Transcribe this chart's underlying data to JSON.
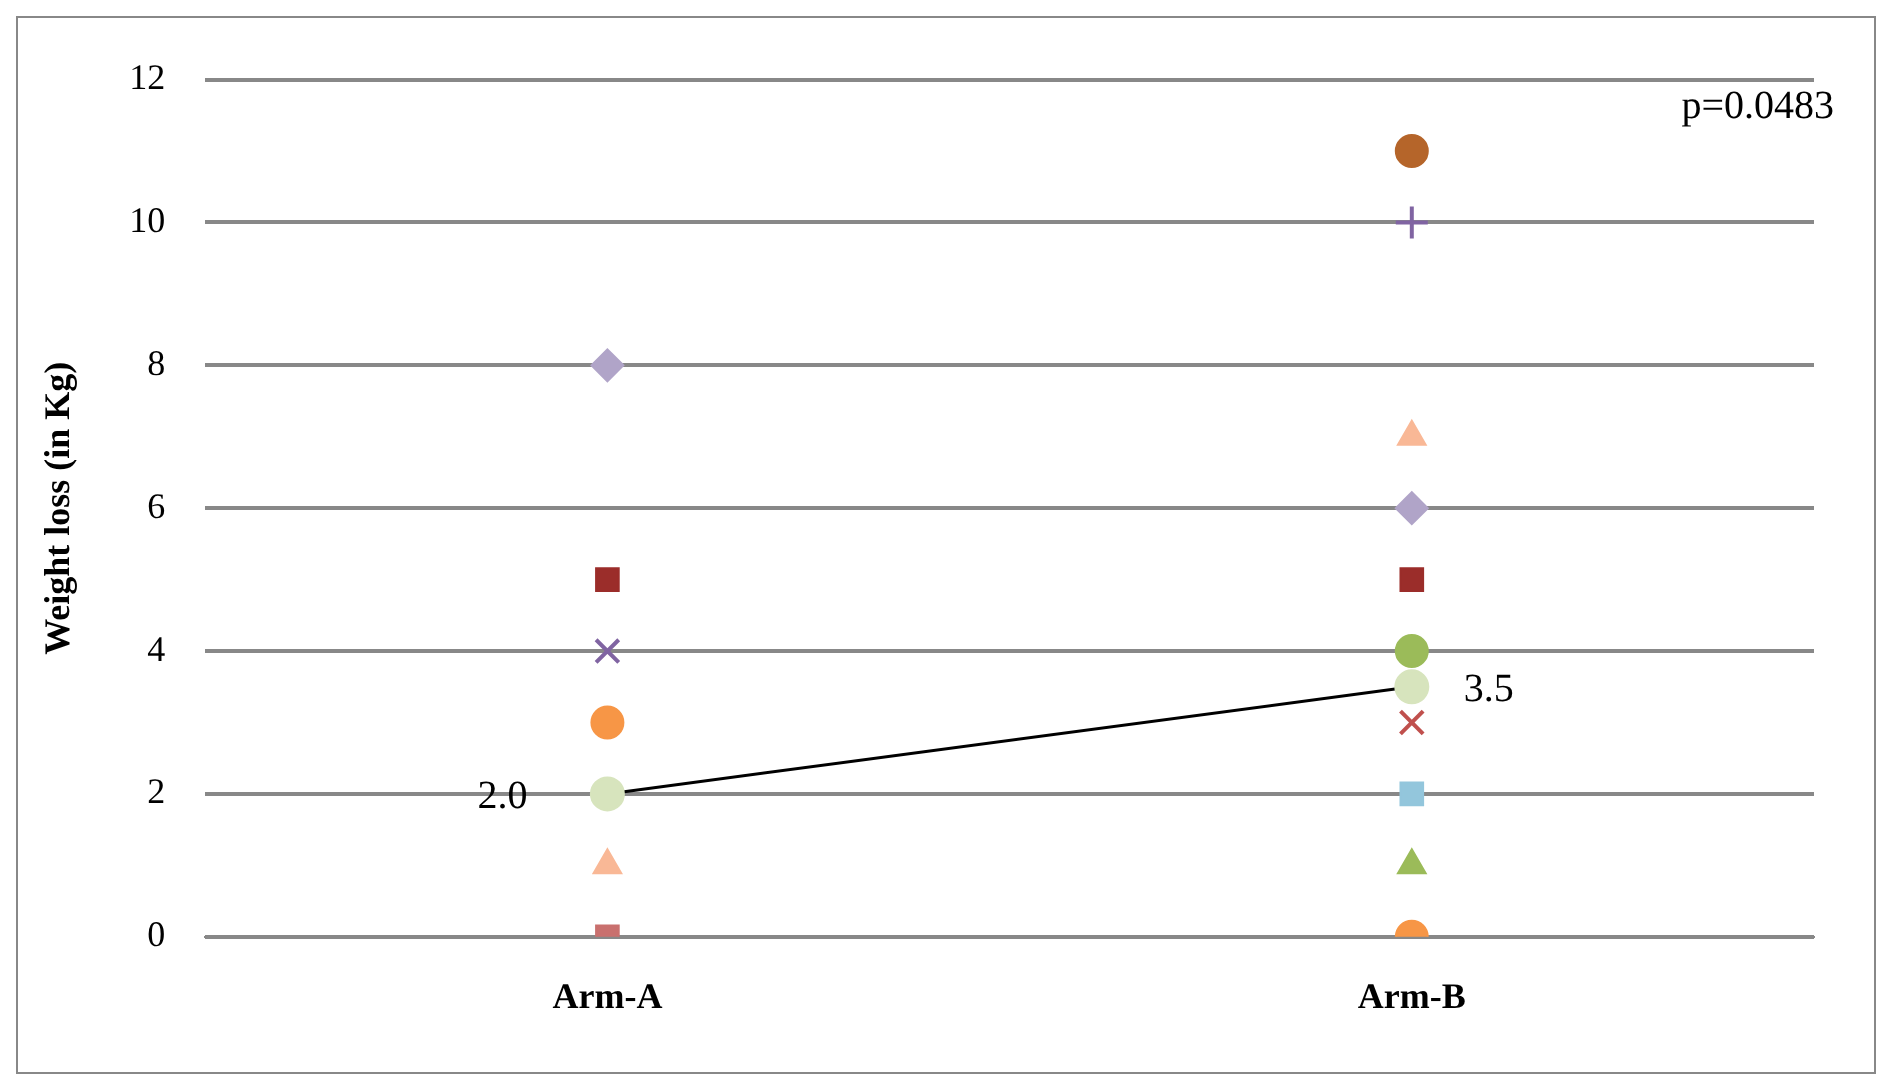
{
  "chart_data": {
    "type": "scatter",
    "ylabel": "Weight loss (in Kg)",
    "categories": [
      "Arm-A",
      "Arm-B"
    ],
    "ylim": [
      0,
      12
    ],
    "yticks": [
      0,
      2,
      4,
      6,
      8,
      10,
      12
    ],
    "grid": "y",
    "legend": false,
    "annotations": [
      "p=0.0483"
    ],
    "series": [
      {
        "color": "#b0a4c8",
        "marker": "diamond",
        "x": [
          "Arm-A",
          "Arm-B"
        ],
        "values": [
          8,
          6
        ]
      },
      {
        "color": "#9b2d2a",
        "marker": "square",
        "x": [
          "Arm-A",
          "Arm-B"
        ],
        "values": [
          5,
          5
        ]
      },
      {
        "color": "#8064a2",
        "marker": "cross",
        "x": [
          "Arm-A"
        ],
        "values": [
          4
        ]
      },
      {
        "color": "#f79646",
        "marker": "circle",
        "x": [
          "Arm-A",
          "Arm-B"
        ],
        "values": [
          3,
          0
        ]
      },
      {
        "color": "#f9b896",
        "marker": "triangle",
        "x": [
          "Arm-A",
          "Arm-B"
        ],
        "values": [
          1,
          7
        ]
      },
      {
        "color": "#c9706e",
        "marker": "square",
        "x": [
          "Arm-A"
        ],
        "values": [
          0
        ]
      },
      {
        "color": "#b5652a",
        "marker": "circle",
        "x": [
          "Arm-B"
        ],
        "values": [
          11
        ]
      },
      {
        "color": "#8064a2",
        "marker": "plus",
        "x": [
          "Arm-B"
        ],
        "values": [
          10
        ]
      },
      {
        "color": "#9bbb59",
        "marker": "circle",
        "x": [
          "Arm-B"
        ],
        "values": [
          4
        ]
      },
      {
        "color": "#c0504d",
        "marker": "cross",
        "x": [
          "Arm-B"
        ],
        "values": [
          3
        ]
      },
      {
        "color": "#93c6dc",
        "marker": "square",
        "x": [
          "Arm-B"
        ],
        "values": [
          2
        ]
      },
      {
        "color": "#9bbb59",
        "marker": "triangle",
        "x": [
          "Arm-B"
        ],
        "values": [
          1
        ]
      },
      {
        "type": "line",
        "color": "#000000",
        "marker": "circle",
        "x": [
          "Arm-A",
          "Arm-B"
        ],
        "values": [
          2.0,
          3.5
        ],
        "value_labels": [
          "2.0",
          "3.5"
        ]
      }
    ]
  }
}
